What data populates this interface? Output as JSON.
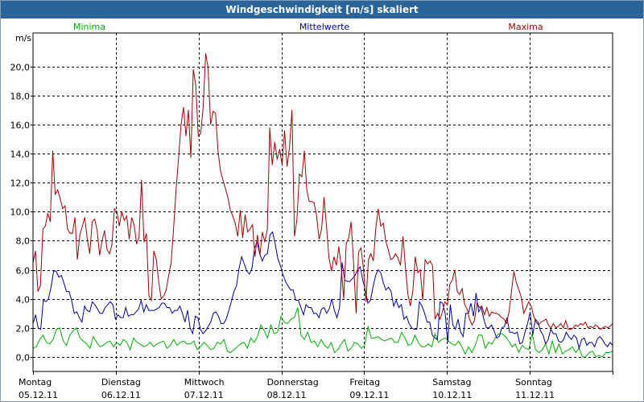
{
  "chart_data": {
    "type": "line",
    "title": "Windgeschwindigkeit [m/s] skaliert",
    "ylabel": "m/s",
    "ylim": [
      -1.0,
      22.3
    ],
    "yticks": [
      "0,0",
      "2,0",
      "4,0",
      "6,0",
      "8,0",
      "10,0",
      "12,0",
      "14,0",
      "16,0",
      "18,0",
      "20,0"
    ],
    "ytick_values": [
      0,
      2,
      4,
      6,
      8,
      10,
      12,
      14,
      16,
      18,
      20
    ],
    "x_range_days": [
      0,
      7
    ],
    "day_labels": [
      {
        "day": "Montag",
        "date": "05.12.11"
      },
      {
        "day": "Dienstag",
        "date": "06.12.11"
      },
      {
        "day": "Mittwoch",
        "date": "07.12.11"
      },
      {
        "day": "Donnerstag",
        "date": "08.12.11"
      },
      {
        "day": "Freitag",
        "date": "09.12.11"
      },
      {
        "day": "Samstag",
        "date": "10.12.11"
      },
      {
        "day": "Sonntag",
        "date": "11.12.11"
      }
    ],
    "grid": true,
    "series": [
      {
        "name": "Minima",
        "color": "#00b000",
        "values": [
          0.6,
          0.7,
          1.2,
          1.5,
          1.0,
          0.9,
          1.2,
          1.9,
          2.0,
          1.1,
          0.8,
          1.5,
          1.8,
          2.0,
          1.3,
          1.1,
          0.9,
          0.6,
          1.4,
          1.0,
          0.7,
          0.8,
          1.0,
          1.1,
          0.7,
          1.0,
          0.8,
          1.2,
          1.0,
          0.5,
          1.3,
          1.0,
          0.9,
          0.7,
          0.8,
          1.0,
          0.7,
          0.9,
          1.0,
          1.1,
          0.6,
          0.8,
          1.2,
          0.8,
          1.0,
          1.1,
          0.9,
          0.9,
          1.1,
          0.5,
          0.7,
          1.0,
          0.8,
          0.5,
          0.6,
          1.0,
          0.9,
          1.2,
          0.4,
          0.3,
          0.5,
          0.7,
          0.9,
          1.0,
          0.6,
          1.3,
          1.0,
          1.4,
          2.2,
          1.8,
          1.3,
          2.2,
          1.6,
          1.7,
          2.8,
          2.4,
          2.3,
          2.6,
          2.7,
          3.4,
          1.5,
          1.2,
          1.7,
          1.0,
          1.1,
          0.7,
          1.2,
          0.8,
          0.6,
          1.0,
          0.3,
          0.5,
          0.9,
          1.2,
          0.4,
          0.6,
          1.0,
          0.9,
          0.6,
          0.8,
          2.1,
          1.3,
          1.3,
          1.4,
          1.2,
          1.1,
          1.2,
          1.3,
          1.0,
          1.0,
          1.7,
          1.3,
          0.8,
          0.9,
          1.5,
          1.0,
          0.7,
          0.7,
          0.9,
          0.7,
          1.6,
          1.0,
          1.2,
          1.3,
          1.1,
          0.9,
          0.8,
          1.1,
          0.7,
          0.2,
          0.7,
          0.3,
          0.8,
          1.5,
          1.5,
          0.6,
          1.0,
          0.9,
          1.3,
          1.6,
          1.6,
          1.4,
          1.1,
          0.7,
          0.9,
          0.3,
          0.8,
          0.6,
          0.5,
          1.6,
          0.5,
          0.3,
          0.5,
          0.9,
          0.2,
          1.1,
          0.3,
          0.9,
          0.2,
          0.4,
          0.5,
          0.7,
          0.3,
          0.6,
          0.0,
          0.0,
          0.3,
          0.4,
          0.0,
          0.1,
          0.0,
          0.3,
          0.3,
          0.4
        ]
      },
      {
        "name": "Mittelwerte",
        "color": "#0000aa",
        "values": [
          2.3,
          2.9,
          2.0,
          1.9,
          3.9,
          3.8,
          4.0,
          4.8,
          5.9,
          5.9,
          5.5,
          5.6,
          5.1,
          4.5,
          4.5,
          3.9,
          3.0,
          3.1,
          2.7,
          2.4,
          3.5,
          3.2,
          3.1,
          3.8,
          3.6,
          3.3,
          3.0,
          3.0,
          3.4,
          3.6,
          3.8,
          3.6,
          2.6,
          2.9,
          2.7,
          2.7,
          3.4,
          2.8,
          2.9,
          2.9,
          3.1,
          3.3,
          3.9,
          3.1,
          3.6,
          3.2,
          3.2,
          3.2,
          3.3,
          3.4,
          3.7,
          3.7,
          3.4,
          3.4,
          3.0,
          3.2,
          3.2,
          3.5,
          3.0,
          2.4,
          3.2,
          2.0,
          1.6,
          2.8,
          2.7,
          1.9,
          1.6,
          1.8,
          2.1,
          2.4,
          3.0,
          3.1,
          2.8,
          2.3,
          2.3,
          2.6,
          3.2,
          3.8,
          4.5,
          4.9,
          6.1,
          6.9,
          6.4,
          5.9,
          5.7,
          6.1,
          7.5,
          7.9,
          7.1,
          6.6,
          7.0,
          7.1,
          8.4,
          8.6,
          7.8,
          6.8,
          6.3,
          5.7,
          5.2,
          4.9,
          4.6,
          4.6,
          3.9,
          3.9,
          3.4,
          2.9,
          3.6,
          3.4,
          3.4,
          3.0,
          3.0,
          2.7,
          3.3,
          3.4,
          3.0,
          3.3,
          4.0,
          3.2,
          2.7,
          3.4,
          6.5,
          5.3,
          5.2,
          5.2,
          5.4,
          5.6,
          6.0,
          6.2,
          5.3,
          4.6,
          3.7,
          3.9,
          4.8,
          5.6,
          6.0,
          5.8,
          5.1,
          4.6,
          4.8,
          4.5,
          3.5,
          3.9,
          3.4,
          3.6,
          2.6,
          2.8,
          2.3,
          2.0,
          1.9,
          1.9,
          3.8,
          3.5,
          3.0,
          2.4,
          2.4,
          1.5,
          1.3,
          1.2,
          3.8,
          3.7,
          3.0,
          1.0,
          3.6,
          2.2,
          1.9,
          2.6,
          1.7,
          1.4,
          3.0,
          3.0,
          3.7,
          2.8,
          4.4,
          3.1,
          3.4,
          2.6,
          2.0,
          2.0,
          2.2,
          1.8,
          1.3,
          1.4,
          2.0,
          2.1,
          2.7,
          1.7,
          1.7,
          1.6,
          1.7,
          0.9,
          1.0,
          1.7,
          2.3,
          3.1,
          1.5,
          2.6,
          2.4,
          1.8,
          1.5,
          0.9,
          1.2,
          1.9,
          1.6,
          1.6,
          1.1,
          1.0,
          1.2,
          1.7,
          1.4,
          1.2,
          1.5,
          1.3,
          0.6,
          1.2,
          1.3,
          0.8,
          1.0,
          1.0,
          0.7,
          1.2,
          1.4,
          1.2,
          0.9,
          0.7,
          1.0,
          0.8
        ]
      },
      {
        "name": "Maxima",
        "color": "#aa0000",
        "values": [
          6.5,
          7.3,
          4.5,
          4.9,
          8.8,
          9.0,
          9.9,
          9.3,
          14.2,
          11.2,
          11.5,
          10.9,
          10.2,
          10.4,
          8.8,
          8.5,
          8.5,
          9.6,
          6.7,
          8.4,
          9.0,
          9.6,
          8.1,
          7.1,
          9.3,
          9.5,
          8.7,
          7.0,
          8.0,
          8.7,
          7.4,
          7.1,
          7.7,
          10.2,
          10.0,
          9.0,
          10.0,
          9.4,
          9.7,
          8.1,
          9.6,
          9.1,
          7.8,
          8.2,
          12.2,
          7.9,
          8.5,
          4.2,
          3.9,
          7.3,
          6.7,
          5.1,
          4.0,
          4.2,
          4.6,
          5.6,
          6.5,
          8.8,
          11.5,
          13.7,
          15.9,
          17.2,
          15.2,
          17.0,
          13.7,
          19.8,
          18.7,
          15.2,
          15.4,
          17.2,
          20.9,
          19.9,
          16.0,
          16.9,
          16.8,
          14.2,
          12.8,
          12.2,
          11.6,
          11.0,
          10.1,
          9.7,
          9.2,
          8.3,
          10.1,
          8.2,
          9.8,
          8.6,
          8.8,
          9.1,
          6.9,
          8.4,
          7.0,
          8.6,
          7.9,
          8.8,
          15.8,
          13.2,
          14.8,
          13.6,
          14.3,
          13.2,
          15.6,
          13.1,
          14.4,
          17.0,
          8.3,
          9.4,
          12.6,
          12.4,
          14.2,
          11.5,
          10.7,
          10.7,
          10.6,
          9.7,
          8.1,
          8.8,
          11.0,
          9.0,
          6.8,
          5.9,
          6.9,
          6.3,
          7.6,
          6.1,
          4.0,
          7.8,
          8.2,
          9.3,
          6.4,
          3.0,
          7.2,
          7.5,
          6.0,
          3.8,
          6.7,
          7.1,
          6.6,
          8.9,
          10.2,
          9.0,
          9.2,
          8.0,
          7.4,
          6.7,
          6.8,
          7.1,
          6.8,
          6.3,
          8.3,
          6.2,
          4.3,
          3.5,
          4.5,
          6.9,
          5.8,
          6.0,
          3.9,
          6.7,
          6.4,
          6.6,
          6.3,
          2.6,
          3.0,
          2.6,
          3.1,
          3.8,
          3.6,
          5.0,
          5.3,
          6.0,
          4.5,
          4.3,
          4.7,
          3.6,
          3.3,
          2.6,
          2.2,
          2.5,
          3.7,
          3.4,
          3.5,
          2.9,
          3.4,
          2.8,
          3.1,
          3.0,
          3.0,
          2.9,
          2.7,
          2.6,
          2.3,
          3.1,
          4.5,
          5.9,
          5.1,
          4.6,
          4.1,
          3.0,
          3.4,
          3.8,
          3.5,
          2.8,
          2.4,
          2.2,
          2.4,
          2.5,
          2.6,
          2.2,
          2.0,
          2.3,
          2.0,
          2.1,
          2.3,
          2.0,
          2.5,
          1.9,
          1.9,
          2.0,
          2.2,
          2.1,
          2.3,
          2.2,
          2.4,
          2.0,
          2.1,
          2.0,
          2.2,
          2.1,
          1.9,
          2.0,
          2.1,
          2.0,
          2.1,
          2.3
        ]
      }
    ]
  }
}
